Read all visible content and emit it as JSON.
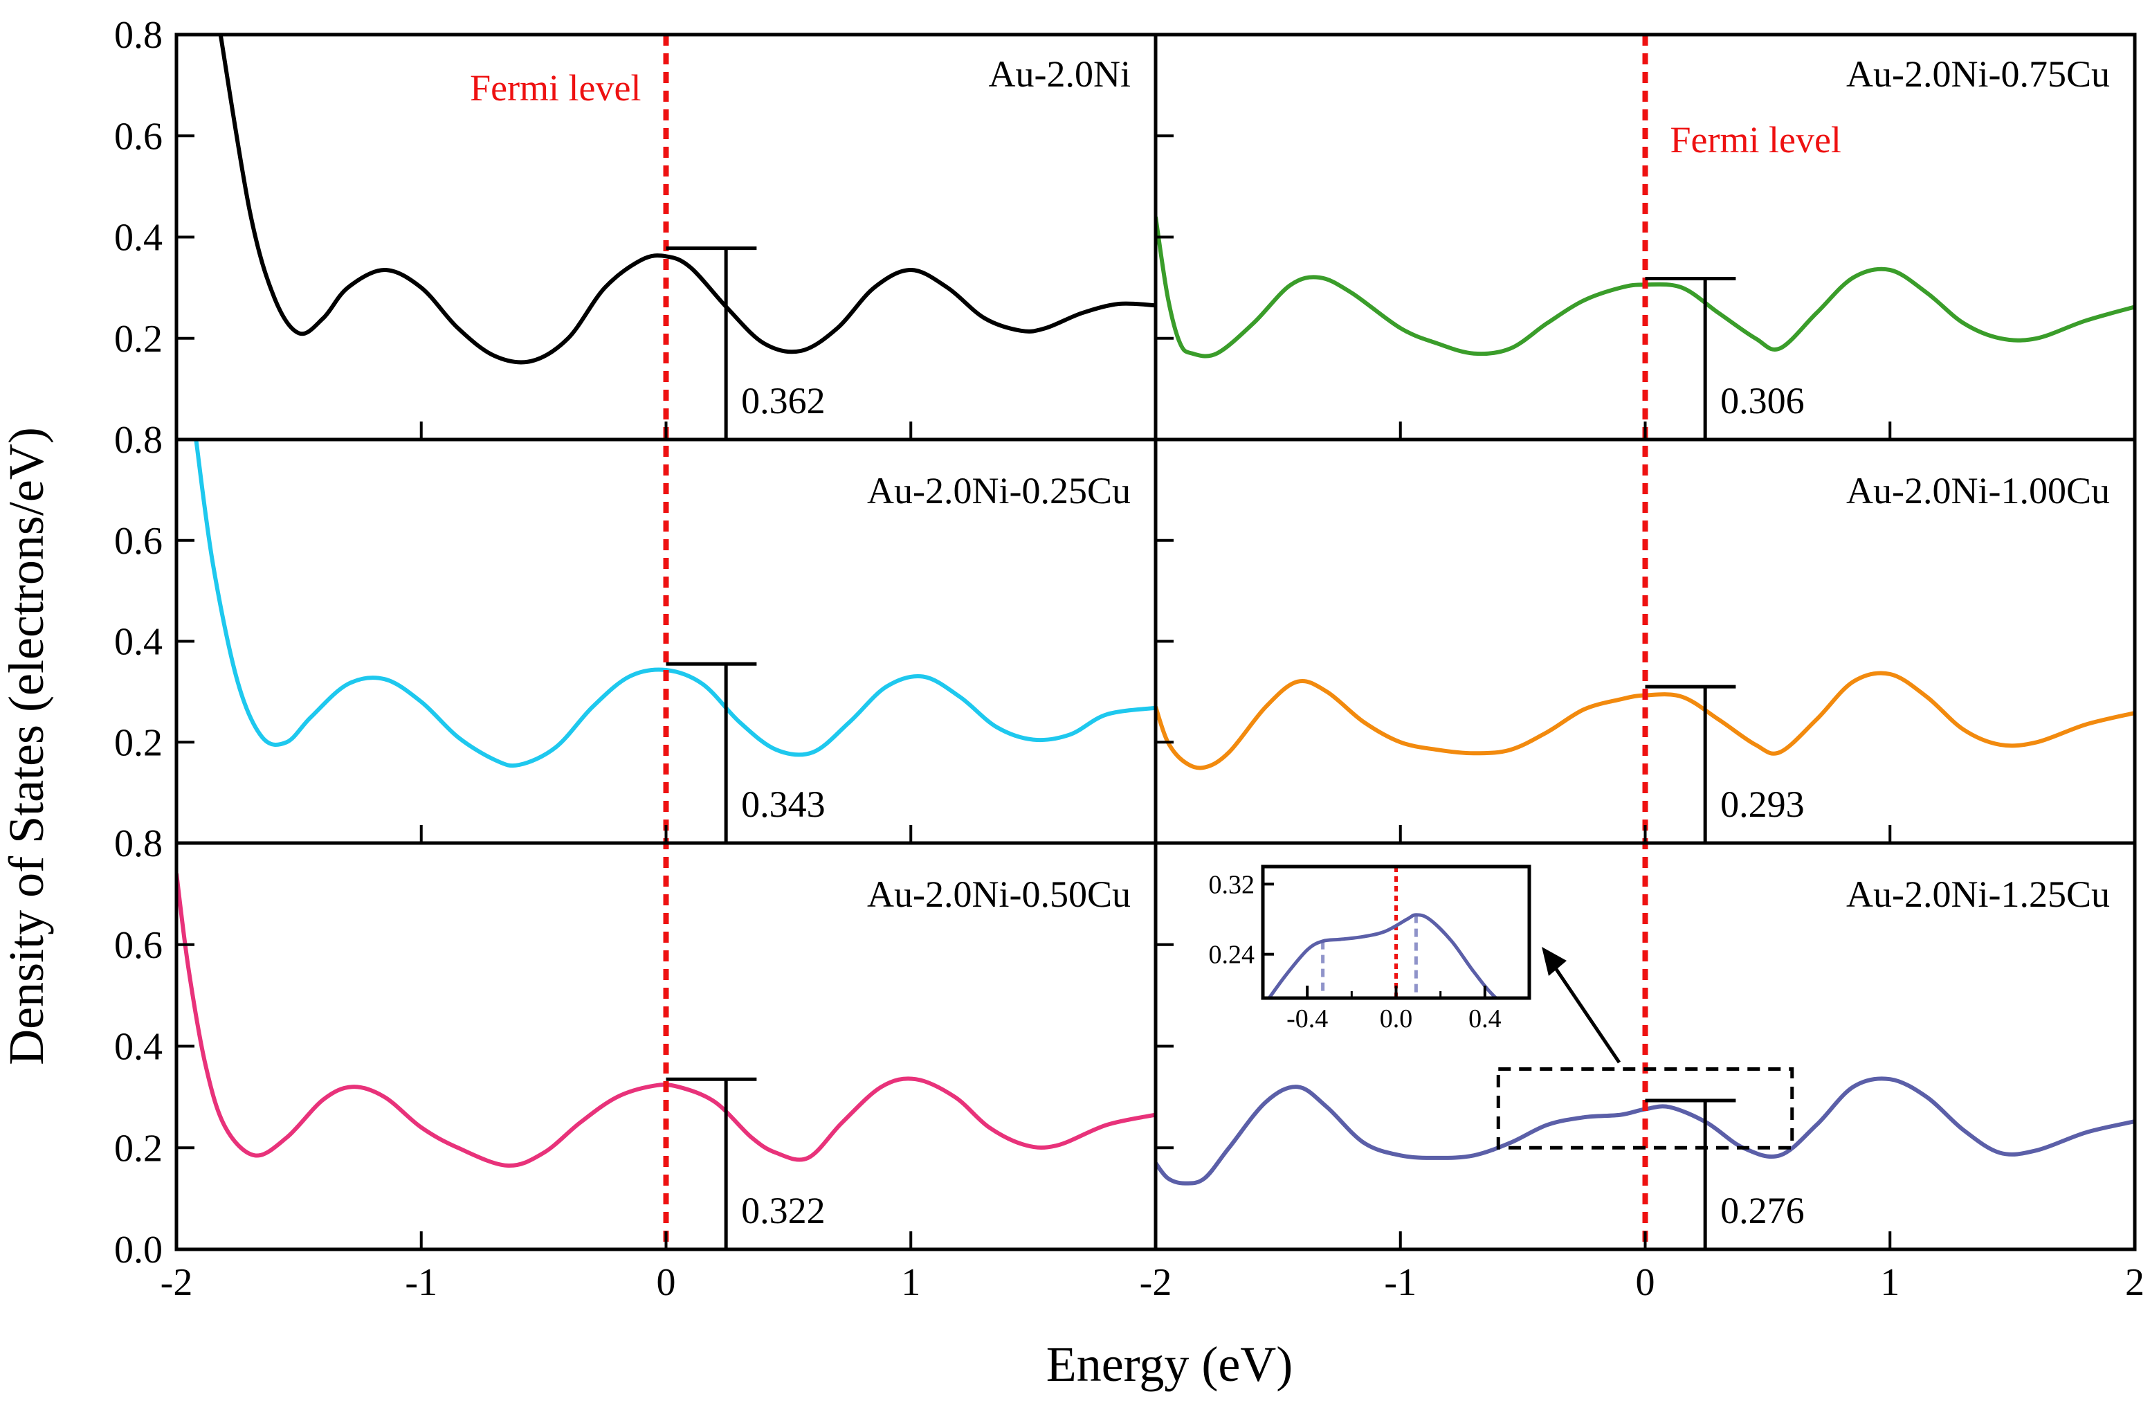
{
  "chart_data": [
    {
      "type": "line",
      "title": "Au-2.0Ni",
      "fermi_label": "Fermi level",
      "color": "#000000",
      "x": [
        -1.82,
        -1.7,
        -1.6,
        -1.5,
        -1.4,
        -1.3,
        -1.15,
        -1.0,
        -0.85,
        -0.7,
        -0.55,
        -0.4,
        -0.25,
        -0.1,
        0.0,
        0.1,
        0.25,
        0.4,
        0.55,
        0.7,
        0.85,
        1.0,
        1.15,
        1.3,
        1.45,
        1.55,
        1.7,
        1.85,
        2.0
      ],
      "values": [
        0.8,
        0.45,
        0.28,
        0.21,
        0.24,
        0.3,
        0.335,
        0.3,
        0.22,
        0.165,
        0.155,
        0.2,
        0.3,
        0.355,
        0.362,
        0.34,
        0.26,
        0.19,
        0.175,
        0.22,
        0.3,
        0.335,
        0.3,
        0.24,
        0.215,
        0.22,
        0.25,
        0.268,
        0.265
      ],
      "fermi_value_label": "0.362",
      "fermi_value": 0.362,
      "bracket_value": 0.378
    },
    {
      "type": "line",
      "title": "Au-2.0Ni-0.75Cu",
      "fermi_label": "Fermi level",
      "color": "#3a9d2a",
      "x": [
        -2.0,
        -1.95,
        -1.9,
        -1.85,
        -1.75,
        -1.6,
        -1.45,
        -1.33,
        -1.2,
        -1.0,
        -0.85,
        -0.7,
        -0.55,
        -0.4,
        -0.25,
        -0.1,
        0.0,
        0.15,
        0.3,
        0.45,
        0.55,
        0.7,
        0.85,
        1.0,
        1.15,
        1.3,
        1.45,
        1.6,
        1.8,
        2.0
      ],
      "values": [
        0.44,
        0.28,
        0.19,
        0.17,
        0.17,
        0.23,
        0.305,
        0.32,
        0.29,
        0.22,
        0.19,
        0.17,
        0.18,
        0.23,
        0.275,
        0.3,
        0.306,
        0.3,
        0.25,
        0.2,
        0.18,
        0.25,
        0.32,
        0.335,
        0.29,
        0.23,
        0.2,
        0.2,
        0.235,
        0.262
      ],
      "fermi_value_label": "0.306",
      "fermi_value": 0.306,
      "bracket_value": 0.318
    },
    {
      "type": "line",
      "title": "Au-2.0Ni-0.25Cu",
      "color": "#1ec8ee",
      "x": [
        -1.92,
        -1.85,
        -1.75,
        -1.65,
        -1.55,
        -1.45,
        -1.3,
        -1.15,
        -1.0,
        -0.85,
        -0.7,
        -0.6,
        -0.45,
        -0.3,
        -0.15,
        0.0,
        0.15,
        0.3,
        0.45,
        0.6,
        0.75,
        0.9,
        1.05,
        1.2,
        1.35,
        1.5,
        1.65,
        1.8,
        2.0
      ],
      "values": [
        0.8,
        0.55,
        0.32,
        0.21,
        0.2,
        0.25,
        0.315,
        0.325,
        0.28,
        0.21,
        0.165,
        0.155,
        0.19,
        0.27,
        0.33,
        0.343,
        0.315,
        0.24,
        0.185,
        0.18,
        0.24,
        0.31,
        0.33,
        0.29,
        0.23,
        0.205,
        0.215,
        0.255,
        0.268
      ],
      "fermi_value_label": "0.343",
      "fermi_value": 0.343,
      "bracket_value": 0.355
    },
    {
      "type": "line",
      "title": "Au-2.0Ni-1.00Cu",
      "color": "#f28a0e",
      "x": [
        -2.0,
        -1.95,
        -1.88,
        -1.8,
        -1.7,
        -1.55,
        -1.42,
        -1.3,
        -1.15,
        -1.0,
        -0.85,
        -0.7,
        -0.55,
        -0.4,
        -0.25,
        -0.1,
        0.0,
        0.15,
        0.3,
        0.45,
        0.55,
        0.7,
        0.85,
        1.0,
        1.15,
        1.3,
        1.45,
        1.6,
        1.8,
        2.0
      ],
      "values": [
        0.27,
        0.2,
        0.16,
        0.15,
        0.18,
        0.27,
        0.32,
        0.3,
        0.24,
        0.2,
        0.185,
        0.178,
        0.185,
        0.22,
        0.265,
        0.285,
        0.293,
        0.29,
        0.245,
        0.195,
        0.18,
        0.245,
        0.32,
        0.335,
        0.29,
        0.225,
        0.195,
        0.2,
        0.235,
        0.258
      ],
      "fermi_value_label": "0.293",
      "fermi_value": 0.293,
      "bracket_value": 0.31
    },
    {
      "type": "line",
      "title": "Au-2.0Ni-0.50Cu",
      "color": "#e8327a",
      "x": [
        -2.0,
        -1.95,
        -1.88,
        -1.8,
        -1.68,
        -1.55,
        -1.4,
        -1.28,
        -1.15,
        -1.0,
        -0.85,
        -0.65,
        -0.5,
        -0.35,
        -0.2,
        -0.05,
        0.05,
        0.2,
        0.35,
        0.45,
        0.58,
        0.72,
        0.88,
        1.02,
        1.18,
        1.32,
        1.47,
        1.6,
        1.8,
        2.0
      ],
      "values": [
        0.74,
        0.55,
        0.36,
        0.24,
        0.185,
        0.22,
        0.295,
        0.32,
        0.3,
        0.24,
        0.2,
        0.165,
        0.19,
        0.25,
        0.3,
        0.322,
        0.32,
        0.29,
        0.22,
        0.19,
        0.18,
        0.25,
        0.32,
        0.335,
        0.3,
        0.24,
        0.205,
        0.205,
        0.245,
        0.265
      ],
      "fermi_value_label": "0.322",
      "fermi_value": 0.322,
      "bracket_value": 0.335
    },
    {
      "type": "line",
      "title": "Au-2.0Ni-1.25Cu",
      "color": "#5b5fa8",
      "x": [
        -2.0,
        -1.95,
        -1.88,
        -1.8,
        -1.7,
        -1.55,
        -1.42,
        -1.3,
        -1.15,
        -1.0,
        -0.85,
        -0.7,
        -0.55,
        -0.4,
        -0.25,
        -0.1,
        0.0,
        0.1,
        0.25,
        0.4,
        0.55,
        0.7,
        0.85,
        1.0,
        1.15,
        1.3,
        1.45,
        1.6,
        1.8,
        2.0
      ],
      "values": [
        0.17,
        0.14,
        0.13,
        0.14,
        0.2,
        0.29,
        0.32,
        0.28,
        0.21,
        0.185,
        0.18,
        0.185,
        0.21,
        0.245,
        0.26,
        0.265,
        0.276,
        0.28,
        0.25,
        0.2,
        0.185,
        0.245,
        0.32,
        0.335,
        0.3,
        0.235,
        0.19,
        0.195,
        0.23,
        0.252
      ],
      "fermi_value_label": "0.276",
      "fermi_value": 0.276,
      "bracket_value": 0.293
    }
  ],
  "figure": {
    "ylabel": "Density of States (electrons/eV)",
    "xlabel": "Energy (eV)",
    "ylim": [
      0.0,
      0.8
    ],
    "xlim": [
      -2,
      2
    ],
    "y_tick_labels": {
      "row0": [
        "0.8",
        "0.6",
        "0.4",
        "0.2"
      ],
      "row1": [
        "0.8",
        "0.6",
        "0.4",
        "0.2"
      ],
      "row2": [
        "0.8",
        "0.6",
        "0.4",
        "0.2",
        "0.0"
      ]
    },
    "x_tick_labels_left": [
      "-2",
      "-1",
      "0",
      "1"
    ],
    "x_tick_labels_right": [
      "-2",
      "-1",
      "0",
      "1",
      "2"
    ],
    "fermi_color": "#ee1111"
  },
  "inset": {
    "xlim": [
      -0.6,
      0.6
    ],
    "ylim": [
      0.19,
      0.34
    ],
    "x": [
      -0.6,
      -0.5,
      -0.4,
      -0.33,
      -0.25,
      -0.15,
      -0.05,
      0.05,
      0.09,
      0.15,
      0.25,
      0.35,
      0.45,
      0.6
    ],
    "values": [
      0.18,
      0.215,
      0.245,
      0.255,
      0.257,
      0.26,
      0.266,
      0.28,
      0.285,
      0.28,
      0.255,
      0.22,
      0.19,
      0.16
    ],
    "x_tick_labels": [
      "-0.4",
      "0.0",
      "0.4"
    ],
    "y_tick_labels": [
      "0.32",
      "0.24"
    ],
    "marker_x": [
      -0.33,
      0.09
    ],
    "color": "#5b5fa8"
  }
}
